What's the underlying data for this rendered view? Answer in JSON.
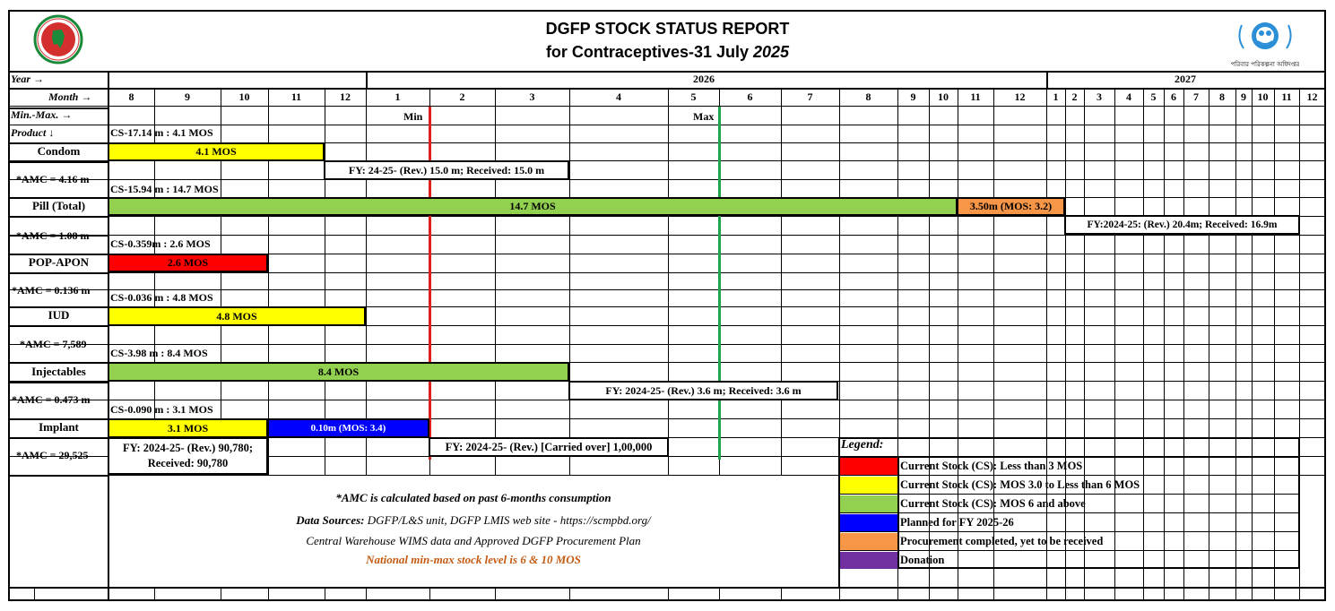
{
  "header": {
    "title_line1": "DGFP STOCK STATUS REPORT",
    "title_line2_prefix": "for Contraceptives-31 July ",
    "title_line2_year": "2025",
    "logo_left": "government-seal",
    "logo_right": "family-planning-logo"
  },
  "axis": {
    "year_label": "Year  →",
    "month_label": "Month →",
    "minmax_label": "Min.-Max. →",
    "product_label": "Product ↓",
    "years": [
      "2026",
      "2027"
    ],
    "months": [
      "8",
      "9",
      "10",
      "11",
      "12",
      "1",
      "2",
      "3",
      "4",
      "5",
      "6",
      "7",
      "8",
      "9",
      "10",
      "11",
      "12",
      "1",
      "2",
      "3",
      "4",
      "5",
      "6",
      "7",
      "8",
      "9",
      "10",
      "11",
      "12"
    ],
    "min_label": "Min",
    "max_label": "Max",
    "min_color": "#e0201b",
    "max_color": "#1fa64a"
  },
  "products": [
    {
      "name": "Condom",
      "amc": "*AMC = 4.16 m",
      "cs": "CS-17.14 m : 4.1 MOS",
      "bar": "4.1 MOS",
      "bar_color": "#ffff00"
    },
    {
      "name": "Pill (Total)",
      "amc": "*AMC = 1.08 m",
      "cs": "CS-15.94 m : 14.7 MOS",
      "bar": "14.7 MOS",
      "bar_color": "#92d050",
      "bar2": "3.50m (MOS: 3.2)",
      "bar2_color": "#f79646"
    },
    {
      "name": "POP-APON",
      "amc": "*AMC = 0.136 m",
      "cs": "CS-0.359m : 2.6 MOS",
      "bar": "2.6 MOS",
      "bar_color": "#ff0000"
    },
    {
      "name": "IUD",
      "amc": "*AMC = 7,589",
      "cs": "CS-0.036 m : 4.8 MOS",
      "bar": "4.8 MOS",
      "bar_color": "#ffff00"
    },
    {
      "name": "Injectables",
      "amc": "*AMC = 0.473 m",
      "cs": "CS-3.98 m : 8.4 MOS",
      "bar": "8.4 MOS",
      "bar_color": "#92d050"
    },
    {
      "name": "Implant",
      "amc": "*AMC = 29,525",
      "cs": "CS-0.090 m : 3.1 MOS",
      "bar": "3.1 MOS",
      "bar_color": "#ffff00",
      "bar2": "0.10m (MOS: 3.4)",
      "bar2_color": "#0000ff"
    }
  ],
  "fy_notes": {
    "condom": "FY: 24-25- (Rev.) 15.0 m; Received: 15.0 m",
    "pill": "FY:2024-25: (Rev.) 20.4m; Received: 16.9m",
    "injectables": "FY: 2024-25- (Rev.) 3.6 m; Received: 3.6 m",
    "implant_line1": "FY: 2024-25- (Rev.) 90,780;",
    "implant_line2": "Received: 90,780",
    "implant_carried": "FY: 2024-25- (Rev.) [Carried over] 1,00,000"
  },
  "notes": {
    "amc_note": "*AMC is calculated based on past 6-months consumption",
    "sources_prefix": "Data Sources:",
    "sources_line1": " DGFP/L&S unit, DGFP LMIS web site -  https://scmpbd.org/",
    "sources_line2": "Central Warehouse WIMS data and Approved DGFP Procurement Plan",
    "minmax_note": "National min-max stock level is 6 & 10 MOS",
    "minmax_note_color": "#c55a11"
  },
  "legend": {
    "title": "Legend:",
    "items": [
      {
        "color": "#ff0000",
        "label": "Current Stock (CS): Less than 3 MOS"
      },
      {
        "color": "#ffff00",
        "label": "Current Stock (CS): MOS 3.0 to Less than 6 MOS"
      },
      {
        "color": "#92d050",
        "label": "Current Stock (CS): MOS 6 and above"
      },
      {
        "color": "#0000ff",
        "label": "Planned for FY 2025-26"
      },
      {
        "color": "#f79646",
        "label": "Procurement completed, yet to be received"
      },
      {
        "color": "#7030a0",
        "label": "Donation"
      }
    ]
  }
}
